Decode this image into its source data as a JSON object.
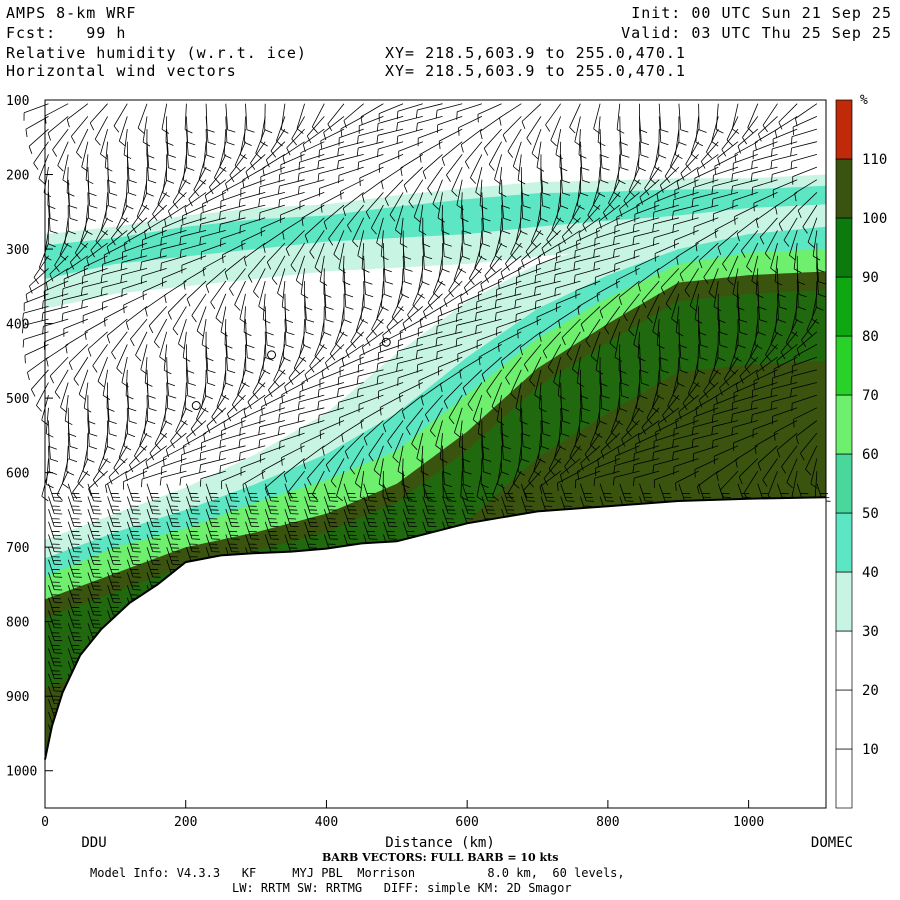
{
  "header": {
    "model_name": "AMPS 8-km WRF",
    "forecast": "Fcst:   99 h",
    "field_1": "Relative humidity (w.r.t. ice)",
    "field_2": "Horizontal wind vectors",
    "init": "Init: 00 UTC Sun 21 Sep 25",
    "valid": "Valid: 03 UTC Thu 25 Sep 25",
    "xy_1": "XY= 218.5,603.9 to 255.0,470.1",
    "xy_2": "XY= 218.5,603.9 to 255.0,470.1"
  },
  "footer": {
    "barb_note": "BARB VECTORS: FULL BARB = 10 kts",
    "model_info": "Model Info: V4.3.3   KF     MYJ PBL  Morrison          8.0 km,  60 levels,",
    "physics": "LW: RRTM SW: RRTMG   DIFF: simple KM: 2D Smagor"
  },
  "chart_data": {
    "type": "heatmap",
    "xlabel": "Distance (km)",
    "xlim": [
      0,
      1110
    ],
    "ylim": [
      1050,
      100
    ],
    "x_ticks": [
      0,
      200,
      400,
      600,
      800,
      1000
    ],
    "y_ticks": [
      100,
      200,
      300,
      400,
      500,
      600,
      700,
      800,
      900,
      1000
    ],
    "start_label": "DDU",
    "end_label": "DOMEC",
    "colorbar": {
      "unit": "%",
      "levels": [
        10,
        20,
        30,
        40,
        50,
        60,
        70,
        80,
        90,
        100,
        110
      ],
      "colors": [
        "#ffffff",
        "#ffffff",
        "#ffffff",
        "#c8f5e3",
        "#5ce6c3",
        "#49d79c",
        "#6ef06e",
        "#28d228",
        "#10a810",
        "#0c7a0c",
        "#3a5410",
        "#c02a08"
      ]
    },
    "terrain_surface": {
      "x": [
        0,
        10,
        25,
        50,
        80,
        120,
        160,
        200,
        250,
        300,
        350,
        400,
        450,
        500,
        550,
        600,
        650,
        700,
        800,
        900,
        1000,
        1110
      ],
      "pressure": [
        985,
        940,
        895,
        845,
        810,
        775,
        750,
        720,
        711,
        708,
        706,
        702,
        695,
        692,
        680,
        668,
        660,
        652,
        645,
        638,
        635,
        633
      ]
    },
    "rh_layers": [
      {
        "label": "90-110",
        "x": [
          0,
          100,
          200,
          300,
          400,
          500,
          600,
          700,
          800,
          900,
          1000,
          1110
        ],
        "top": [
          770,
          735,
          700,
          680,
          655,
          615,
          545,
          460,
          400,
          345,
          335,
          330
        ]
      },
      {
        "label": "60-90",
        "x": [
          0,
          100,
          200,
          300,
          400,
          500,
          600,
          700,
          800,
          900,
          1000,
          1110
        ],
        "top": [
          740,
          700,
          675,
          640,
          610,
          570,
          495,
          420,
          365,
          320,
          305,
          300
        ]
      },
      {
        "label": "40-60",
        "x": [
          0,
          100,
          200,
          300,
          400,
          500,
          600,
          700,
          800,
          900,
          1000,
          1110
        ],
        "top": [
          715,
          680,
          650,
          615,
          575,
          520,
          445,
          380,
          335,
          300,
          280,
          270
        ]
      },
      {
        "label": "30-40",
        "x": [
          0,
          100,
          200,
          300,
          400,
          500,
          600,
          700,
          800,
          900,
          1000,
          1110
        ],
        "top": [
          690,
          655,
          620,
          575,
          520,
          440,
          370,
          320,
          290,
          265,
          250,
          240
        ]
      }
    ],
    "upper_moist_band": {
      "x": [
        0,
        100,
        200,
        300,
        400,
        500,
        600,
        700,
        800,
        900,
        1000,
        1110
      ],
      "top": [
        280,
        270,
        255,
        245,
        240,
        228,
        218,
        210,
        208,
        205,
        205,
        200
      ],
      "bottom": [
        340,
        320,
        310,
        300,
        290,
        285,
        280,
        270,
        262,
        255,
        245,
        240
      ]
    },
    "calm_points": [
      {
        "x": 215,
        "pressure": 510
      },
      {
        "x": 322,
        "pressure": 442
      },
      {
        "x": 485,
        "pressure": 425
      }
    ]
  }
}
